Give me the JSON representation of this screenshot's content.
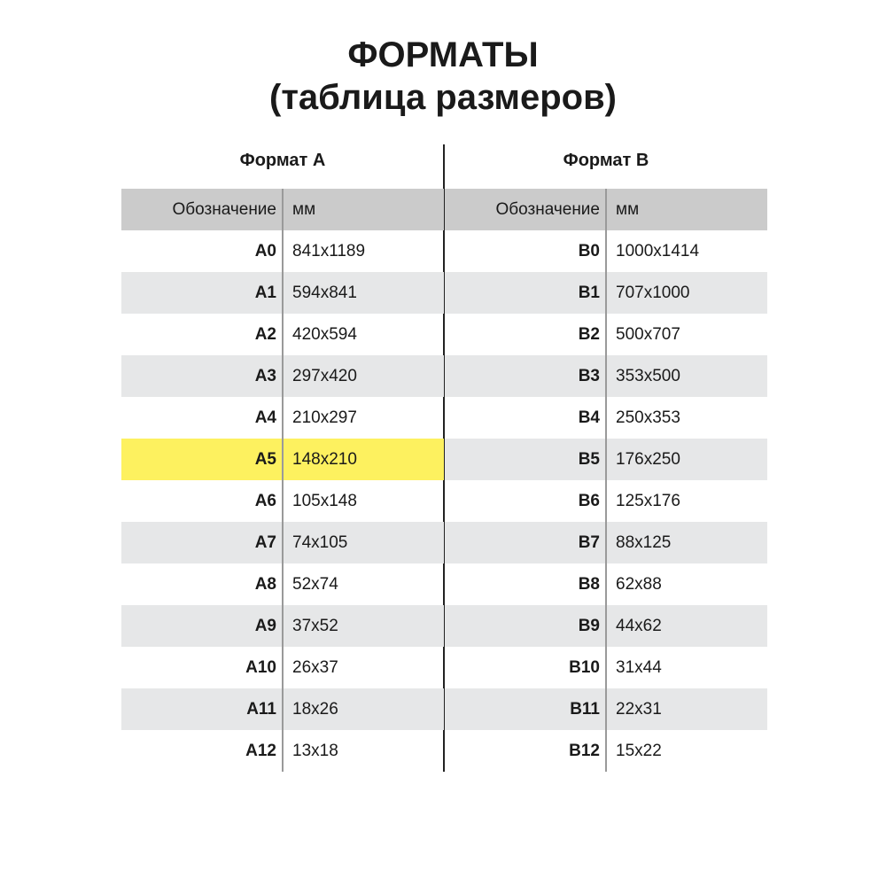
{
  "title": {
    "line1": "ФОРМАТЫ",
    "line2": "(таблица размеров)"
  },
  "colors": {
    "header_bg": "#cbcbcb",
    "stripe_bg": "#e6e7e8",
    "highlight_bg": "#fdf15f"
  },
  "tables": [
    {
      "title": "Формат А",
      "headers": [
        "Обозначение",
        "мм"
      ],
      "highlighted": "A5",
      "rows": [
        [
          "A0",
          "841x1189"
        ],
        [
          "A1",
          "594x841"
        ],
        [
          "A2",
          "420x594"
        ],
        [
          "A3",
          "297x420"
        ],
        [
          "A4",
          "210x297"
        ],
        [
          "A5",
          "148x210"
        ],
        [
          "A6",
          "105x148"
        ],
        [
          "A7",
          "74x105"
        ],
        [
          "A8",
          "52x74"
        ],
        [
          "A9",
          "37x52"
        ],
        [
          "A10",
          "26x37"
        ],
        [
          "A11",
          "18x26"
        ],
        [
          "A12",
          "13x18"
        ]
      ]
    },
    {
      "title": "Формат В",
      "headers": [
        "Обозначение",
        "мм"
      ],
      "highlighted": "",
      "rows": [
        [
          "B0",
          "1000x1414"
        ],
        [
          "B1",
          "707x1000"
        ],
        [
          "B2",
          "500x707"
        ],
        [
          "B3",
          "353x500"
        ],
        [
          "B4",
          "250x353"
        ],
        [
          "B5",
          "176x250"
        ],
        [
          "B6",
          "125x176"
        ],
        [
          "B7",
          "88x125"
        ],
        [
          "B8",
          "62x88"
        ],
        [
          "B9",
          "44x62"
        ],
        [
          "B10",
          "31x44"
        ],
        [
          "B11",
          "22x31"
        ],
        [
          "B12",
          "15x22"
        ]
      ]
    }
  ]
}
